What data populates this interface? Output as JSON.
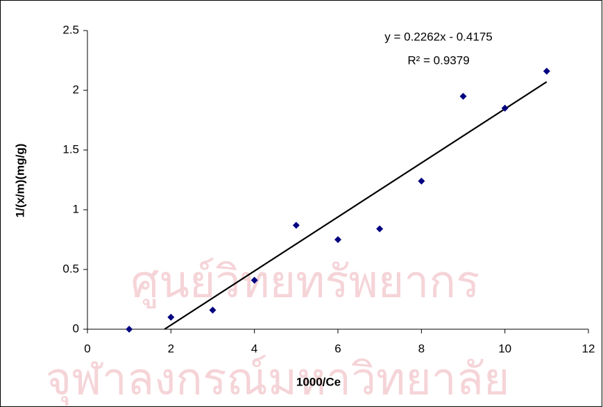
{
  "chart_data": {
    "type": "scatter",
    "x_label": "1000/Ce",
    "y_label": "1/(x/m)(mg/g)",
    "x": [
      1,
      2,
      3,
      4,
      5,
      6,
      7,
      8,
      9,
      10,
      11
    ],
    "values": [
      0,
      0.1,
      0.16,
      0.41,
      0.87,
      0.75,
      0.84,
      1.24,
      1.95,
      1.85,
      2.16
    ],
    "color": "#000080",
    "xlim": [
      0,
      12
    ],
    "xticks": [
      0,
      2,
      4,
      6,
      8,
      10,
      12
    ],
    "ylim": [
      0,
      2.5
    ],
    "yticks": [
      0,
      0.5,
      1,
      1.5,
      2,
      2.5
    ],
    "trendline": {
      "slope": 0.2262,
      "intercept": -0.4175,
      "color": "#000000"
    },
    "annotations": [
      "y = 0.2262x - 0.4175",
      "R² = 0.9379"
    ],
    "watermark": [
      "ศูนย์วิทยทรัพยากร",
      "จุฬาลงกรณ์มหาวิทยาลัย"
    ]
  }
}
